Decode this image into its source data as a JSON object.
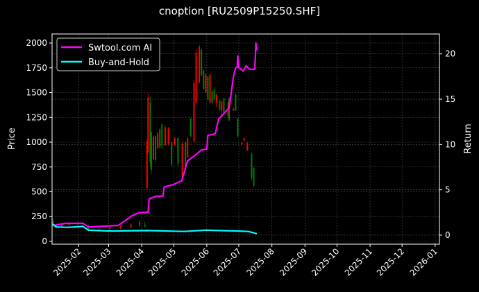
{
  "chart_data": {
    "type": "line",
    "title": "cnoption [RU2509P15250.SHF]",
    "xlabel": "",
    "ylabel": "Price",
    "ylabel_right": "Return",
    "x_unit": "day-of-year 2025",
    "xlim": [
      6,
      369
    ],
    "ylim": [
      -28,
      2091
    ],
    "ylim_right": [
      -1.0,
      22.2
    ],
    "x_ticks": [
      {
        "day": 31,
        "label": "2025-02"
      },
      {
        "day": 59,
        "label": "2025-03"
      },
      {
        "day": 90,
        "label": "2025-04"
      },
      {
        "day": 120,
        "label": "2025-05"
      },
      {
        "day": 151,
        "label": "2025-06"
      },
      {
        "day": 181,
        "label": "2025-07"
      },
      {
        "day": 212,
        "label": "2025-08"
      },
      {
        "day": 243,
        "label": "2025-09"
      },
      {
        "day": 273,
        "label": "2025-10"
      },
      {
        "day": 304,
        "label": "2025-11"
      },
      {
        "day": 334,
        "label": "2025-12"
      },
      {
        "day": 365,
        "label": "2026-01"
      }
    ],
    "y_ticks": [
      0,
      250,
      500,
      750,
      1000,
      1250,
      1500,
      1750,
      2000
    ],
    "y_ticks_right": [
      0,
      5,
      10,
      15,
      20
    ],
    "grid": true,
    "legend_position": "top-left",
    "colors": {
      "up": "#ff0000",
      "down": "#008000",
      "strategy": "#ff00ff",
      "buyhold": "#00ffff"
    },
    "candles": [
      [
        7,
        200,
        230,
        150,
        160
      ],
      [
        10,
        160,
        180,
        130,
        140
      ],
      [
        15,
        150,
        175,
        140,
        165
      ],
      [
        22,
        165,
        190,
        150,
        175
      ],
      [
        30,
        175,
        200,
        160,
        180
      ],
      [
        40,
        160,
        170,
        100,
        110
      ],
      [
        50,
        110,
        140,
        100,
        120
      ],
      [
        60,
        120,
        150,
        105,
        130
      ],
      [
        70,
        130,
        160,
        120,
        150
      ],
      [
        80,
        140,
        180,
        130,
        170
      ],
      [
        88,
        160,
        210,
        150,
        200
      ],
      [
        93,
        170,
        200,
        140,
        150
      ],
      [
        95,
        540,
        1035,
        517,
        1000
      ],
      [
        96,
        900,
        1497,
        895,
        1450
      ],
      [
        98,
        1400,
        1455,
        755,
        800
      ],
      [
        99,
        1100,
        1105,
        685,
        720
      ],
      [
        101,
        830,
        1070,
        825,
        1050
      ],
      [
        103,
        1060,
        1070,
        804,
        820
      ],
      [
        105,
        940,
        1105,
        930,
        1090
      ],
      [
        107,
        1130,
        1140,
        930,
        950
      ],
      [
        109,
        1180,
        1189,
        930,
        960
      ],
      [
        112,
        970,
        1175,
        965,
        1150
      ],
      [
        115,
        980,
        1154,
        965,
        1140
      ],
      [
        118,
        1000,
        1000,
        755,
        770
      ],
      [
        121,
        970,
        1049,
        965,
        1040
      ],
      [
        124,
        1040,
        1049,
        755,
        780
      ],
      [
        128,
        660,
        1000,
        650,
        980
      ],
      [
        131,
        1000,
        1000,
        720,
        740
      ],
      [
        133,
        850,
        1049,
        839,
        1040
      ],
      [
        136,
        1240,
        1245,
        1049,
        1060
      ],
      [
        139,
        1010,
        1629,
        1000,
        1600
      ],
      [
        141,
        1400,
        1930,
        1385,
        1900
      ],
      [
        144,
        1600,
        1979,
        1594,
        1960
      ],
      [
        146,
        1930,
        1944,
        1664,
        1680
      ],
      [
        148,
        1720,
        1734,
        1524,
        1540
      ],
      [
        150,
        1500,
        1699,
        1494,
        1680
      ],
      [
        152,
        1660,
        1664,
        1420,
        1430
      ],
      [
        154,
        1400,
        1699,
        1385,
        1680
      ],
      [
        156,
        1510,
        1524,
        1385,
        1400
      ],
      [
        158,
        1530,
        1560,
        1420,
        1440
      ],
      [
        160,
        1390,
        1490,
        1350,
        1480
      ],
      [
        163,
        1420,
        1420,
        1315,
        1330
      ],
      [
        165,
        1320,
        1420,
        1245,
        1410
      ],
      [
        167,
        1440,
        1450,
        1280,
        1290
      ],
      [
        171,
        1270,
        1420,
        1245,
        1400
      ],
      [
        172,
        1440,
        1455,
        1210,
        1220
      ],
      [
        176,
        1320,
        1350,
        1315,
        1340
      ],
      [
        178,
        1480,
        1490,
        1315,
        1320
      ],
      [
        180,
        1240,
        1245,
        1049,
        1060
      ],
      [
        184,
        980,
        1000,
        965,
        995
      ],
      [
        186,
        1020,
        1049,
        1000,
        1040
      ],
      [
        189,
        920,
        1000,
        909,
        990
      ],
      [
        193,
        880,
        900,
        615,
        640
      ],
      [
        195,
        740,
        750,
        545,
        560
      ]
    ],
    "series": [
      {
        "name": "Swtool.com AI",
        "axis": "right",
        "x": [
          6.7,
          19,
          35,
          40,
          68,
          77.5,
          81,
          87,
          96,
          97,
          103.5,
          110,
          111,
          120,
          127.5,
          133,
          139,
          146,
          151,
          152,
          159,
          162,
          168.5,
          172,
          176,
          178,
          179.5,
          180,
          181,
          185,
          188,
          191,
          196,
          197,
          198
        ],
        "y": [
          1.07,
          1.3,
          1.3,
          0.9,
          1.07,
          1.84,
          2.15,
          2.45,
          2.53,
          4.0,
          4.3,
          4.3,
          5.3,
          5.6,
          6.0,
          8.2,
          8.7,
          9.4,
          9.5,
          11.0,
          11.2,
          12.8,
          13.6,
          14.1,
          17.5,
          18.5,
          18.5,
          19.8,
          18.5,
          18.1,
          18.7,
          18.3,
          18.3,
          21.2,
          20.4
        ]
      },
      {
        "name": "Buy-and-Hold",
        "axis": "right",
        "x": [
          6.7,
          10,
          20,
          35,
          40,
          60,
          95,
          130,
          150,
          180,
          190,
          198
        ],
        "y": [
          1.2,
          0.9,
          0.85,
          0.95,
          0.55,
          0.45,
          0.5,
          0.4,
          0.55,
          0.45,
          0.4,
          0.15
        ]
      }
    ]
  }
}
